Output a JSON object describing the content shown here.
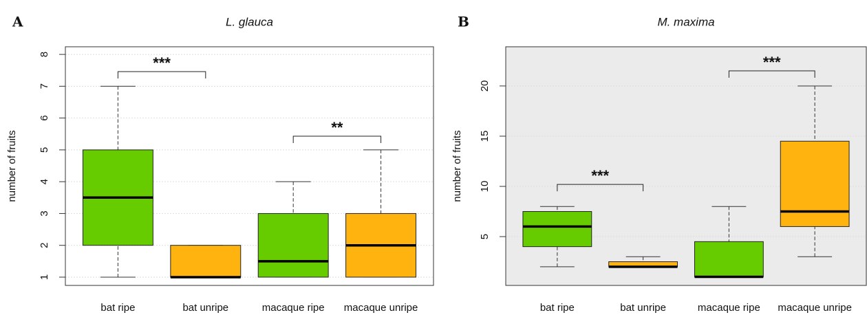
{
  "chart_data": [
    {
      "type": "box",
      "panel_label": "A",
      "title": "L. glauca",
      "y_label": "number of fruits",
      "categories": [
        "bat ripe",
        "bat unripe",
        "macaque ripe",
        "macaque unripe"
      ],
      "colors": [
        "#66cc00",
        "#ffb30f",
        "#66cc00",
        "#ffb30f"
      ],
      "boxes": [
        {
          "min": 1,
          "q1": 2,
          "median": 3.5,
          "q3": 5,
          "max": 7
        },
        {
          "min": 1,
          "q1": 1,
          "median": 1,
          "q3": 2,
          "max": 2
        },
        {
          "min": 1,
          "q1": 1,
          "median": 1.5,
          "q3": 3,
          "max": 4
        },
        {
          "min": 1,
          "q1": 1,
          "median": 2,
          "q3": 3,
          "max": 5
        }
      ],
      "annotations": [
        {
          "text": "***",
          "from": 0,
          "to": 1,
          "y": 7.46
        },
        {
          "text": "**",
          "from": 2,
          "to": 3,
          "y": 5.43
        }
      ],
      "ylim": [
        0.74,
        8.24
      ],
      "yticks": [
        1,
        2,
        3,
        4,
        5,
        6,
        7,
        8
      ],
      "grid": true,
      "background": "#ffffff"
    },
    {
      "type": "box",
      "panel_label": "B",
      "title": "M. maxima",
      "y_label": "number of fruits",
      "categories": [
        "bat ripe",
        "bat unripe",
        "macaque ripe",
        "macaque unripe"
      ],
      "colors": [
        "#66cc00",
        "#ffb30f",
        "#66cc00",
        "#ffb30f"
      ],
      "boxes": [
        {
          "min": 2,
          "q1": 4,
          "median": 6,
          "q3": 7.5,
          "max": 8
        },
        {
          "min": 2,
          "q1": 2,
          "median": 2,
          "q3": 2.5,
          "max": 3
        },
        {
          "min": 1,
          "q1": 1,
          "median": 1,
          "q3": 4.5,
          "max": 8
        },
        {
          "min": 3,
          "q1": 6,
          "median": 7.5,
          "q3": 14.5,
          "max": 20
        }
      ],
      "annotations": [
        {
          "text": "***",
          "from": 0,
          "to": 1,
          "y": 10.2
        },
        {
          "text": "***",
          "from": 2,
          "to": 3,
          "y": 21.5
        }
      ],
      "ylim": [
        0.14,
        23.9
      ],
      "yticks": [
        5,
        10,
        15,
        20
      ],
      "grid": true,
      "background": "#ebebeb"
    }
  ]
}
